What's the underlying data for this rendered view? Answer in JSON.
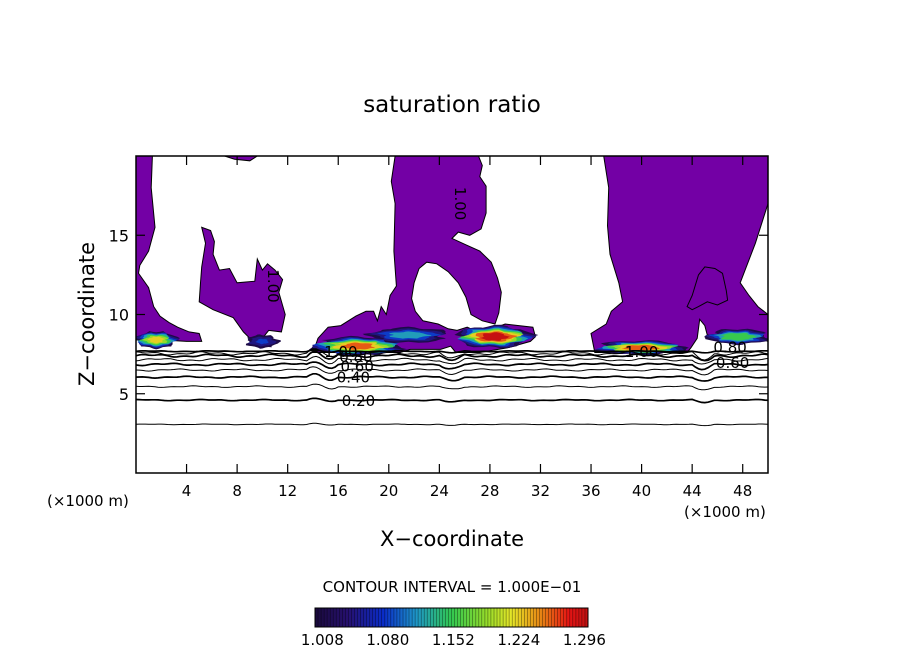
{
  "chart_data": {
    "type": "heatmap",
    "title": "saturation ratio",
    "xlabel": "X−coordinate",
    "ylabel": "Z−coordinate",
    "x_unit_left": "(×1000 m)",
    "x_unit_right": "(×1000 m)",
    "xlim": [
      0,
      50
    ],
    "ylim": [
      0,
      20
    ],
    "x_ticks": [
      4,
      8,
      12,
      16,
      20,
      24,
      28,
      32,
      36,
      40,
      44,
      48
    ],
    "y_ticks": [
      5,
      10,
      15
    ],
    "contour_interval_text": "CONTOUR INTERVAL = 1.000E−01",
    "colorbar": {
      "min": 1.0,
      "max": 1.3,
      "tick_labels": [
        "1.008",
        "1.080",
        "1.152",
        "1.224",
        "1.296"
      ],
      "tick_values": [
        1.008,
        1.08,
        1.152,
        1.224,
        1.296
      ]
    },
    "contour_labels": [
      {
        "text": "0.20",
        "x": 17.6,
        "y": 4.5
      },
      {
        "text": "0.40",
        "x": 17.2,
        "y": 6.0
      },
      {
        "text": "0.60",
        "x": 17.5,
        "y": 6.7
      },
      {
        "text": "0.80",
        "x": 17.4,
        "y": 7.3
      },
      {
        "text": "1.00",
        "x": 16.2,
        "y": 7.6
      },
      {
        "text": "1.00",
        "x": 40.0,
        "y": 7.6
      },
      {
        "text": "0.80",
        "x": 47.0,
        "y": 7.9
      },
      {
        "text": "0.60",
        "x": 47.2,
        "y": 6.9
      },
      {
        "text": "1.00",
        "x": 25.6,
        "y": 17.0
      },
      {
        "text": "1.00",
        "x": 10.8,
        "y": 11.8
      }
    ],
    "contour_levels_below": [
      0.2,
      0.4,
      0.6,
      0.8,
      1.0
    ],
    "supersaturated_regions": [
      [
        [
          0,
          20
        ],
        [
          1.3,
          20
        ],
        [
          1.2,
          18
        ],
        [
          1.5,
          15.5
        ],
        [
          1.0,
          14.0
        ],
        [
          0.3,
          13.1
        ],
        [
          0.2,
          12.6
        ],
        [
          1.0,
          11.7
        ],
        [
          1.4,
          10.5
        ],
        [
          1.9,
          9.9
        ],
        [
          2.6,
          9.5
        ],
        [
          3.3,
          9.2
        ],
        [
          4.2,
          8.9
        ],
        [
          5.0,
          8.8
        ],
        [
          5.2,
          8.3
        ],
        [
          4.0,
          8.3
        ],
        [
          2.0,
          8.4
        ],
        [
          0,
          8.4
        ]
      ],
      [
        [
          9.6,
          8.1
        ],
        [
          10.5,
          9.0
        ],
        [
          11.5,
          8.9
        ],
        [
          11.8,
          10.0
        ],
        [
          11.3,
          11.4
        ],
        [
          11.6,
          12.2
        ],
        [
          11.0,
          12.8
        ],
        [
          10.4,
          13.2
        ],
        [
          10.0,
          12.8
        ],
        [
          9.6,
          13.5
        ],
        [
          9.4,
          12.1
        ],
        [
          8.0,
          12.0
        ],
        [
          7.4,
          12.9
        ],
        [
          6.6,
          12.8
        ],
        [
          6.1,
          13.8
        ],
        [
          6.2,
          14.6
        ],
        [
          5.9,
          15.3
        ],
        [
          5.2,
          15.5
        ],
        [
          5.5,
          14.5
        ],
        [
          5.2,
          13.0
        ],
        [
          5.1,
          12.0
        ],
        [
          5.0,
          10.8
        ],
        [
          6.1,
          10.3
        ],
        [
          7.7,
          9.8
        ],
        [
          8.5,
          8.9
        ],
        [
          9.0,
          8.5
        ]
      ],
      [
        [
          7.0,
          20
        ],
        [
          9.6,
          20
        ],
        [
          9.0,
          19.7
        ],
        [
          7.8,
          19.8
        ]
      ],
      [
        [
          14.0,
          7.6
        ],
        [
          14.4,
          8.5
        ],
        [
          15.2,
          9.2
        ],
        [
          16.2,
          9.3
        ],
        [
          17.4,
          9.9
        ],
        [
          18.2,
          10.2
        ],
        [
          18.8,
          10.2
        ],
        [
          19.1,
          9.6
        ],
        [
          19.4,
          10.5
        ],
        [
          19.8,
          10.0
        ],
        [
          20.1,
          11.2
        ],
        [
          20.6,
          11.8
        ],
        [
          20.4,
          14.0
        ],
        [
          20.5,
          17.0
        ],
        [
          20.2,
          18.4
        ],
        [
          20.5,
          20
        ],
        [
          27.1,
          20
        ],
        [
          27.4,
          19.4
        ],
        [
          27.2,
          18.7
        ],
        [
          27.7,
          18.1
        ],
        [
          27.7,
          16.4
        ],
        [
          27.3,
          15.4
        ],
        [
          26.4,
          15.0
        ],
        [
          25.5,
          15.2
        ],
        [
          25.0,
          14.8
        ],
        [
          26.1,
          14.4
        ],
        [
          27.2,
          14.0
        ],
        [
          28.1,
          13.3
        ],
        [
          28.6,
          12.3
        ],
        [
          28.9,
          11.4
        ],
        [
          28.7,
          10.1
        ],
        [
          28.4,
          9.4
        ],
        [
          27.4,
          9.6
        ],
        [
          26.5,
          10.0
        ],
        [
          26.1,
          11.1
        ],
        [
          25.5,
          12.0
        ],
        [
          24.7,
          12.7
        ],
        [
          23.8,
          13.2
        ],
        [
          23.0,
          13.3
        ],
        [
          22.4,
          12.9
        ],
        [
          22.0,
          12.0
        ],
        [
          21.8,
          11.0
        ],
        [
          22.1,
          10.2
        ],
        [
          22.7,
          9.6
        ],
        [
          23.9,
          9.4
        ],
        [
          24.7,
          9.1
        ],
        [
          25.4,
          9.0
        ],
        [
          26.2,
          9.2
        ],
        [
          27.3,
          8.8
        ],
        [
          29.2,
          9.4
        ],
        [
          31.4,
          9.2
        ],
        [
          31.6,
          8.6
        ],
        [
          31.2,
          8.3
        ],
        [
          29.4,
          7.9
        ],
        [
          27.2,
          7.6
        ],
        [
          25.3,
          7.6
        ],
        [
          24.9,
          8.0
        ],
        [
          24.1,
          7.8
        ],
        [
          21.7,
          7.8
        ],
        [
          20.9,
          7.6
        ],
        [
          20.2,
          7.6
        ],
        [
          18.7,
          7.6
        ]
      ],
      [
        [
          36.3,
          7.6
        ],
        [
          36.0,
          8.8
        ],
        [
          37.2,
          9.4
        ],
        [
          37.6,
          10.2
        ],
        [
          38.5,
          10.8
        ],
        [
          38.2,
          12.0
        ],
        [
          37.5,
          13.8
        ],
        [
          37.3,
          15.6
        ],
        [
          37.4,
          18.0
        ],
        [
          37.0,
          20
        ],
        [
          50,
          20
        ],
        [
          50,
          17.0
        ],
        [
          49.0,
          14.5
        ],
        [
          47.8,
          12.0
        ],
        [
          48.5,
          11.2
        ],
        [
          49.2,
          10.5
        ],
        [
          50,
          10.0
        ],
        [
          50,
          8.3
        ],
        [
          48.6,
          8.8
        ],
        [
          47.9,
          8.8
        ],
        [
          45.2,
          8.7
        ],
        [
          45.0,
          9.3
        ],
        [
          44.6,
          9.7
        ],
        [
          44.4,
          8.5
        ],
        [
          43.9,
          7.9
        ],
        [
          43.6,
          7.6
        ],
        [
          40.0,
          7.6
        ],
        [
          38.0,
          7.6
        ]
      ],
      [
        [
          43.6,
          10.5
        ],
        [
          44.0,
          11.2
        ],
        [
          44.5,
          12.5
        ],
        [
          45.0,
          13.0
        ],
        [
          45.8,
          12.9
        ],
        [
          46.4,
          12.6
        ],
        [
          46.7,
          11.5
        ],
        [
          46.8,
          10.9
        ],
        [
          46.0,
          10.6
        ],
        [
          45.2,
          10.8
        ],
        [
          44.5,
          10.5
        ],
        [
          44.0,
          10.3
        ]
      ]
    ],
    "ice_cloud_bands": [
      {
        "x0": 0.0,
        "x1": 3.2,
        "peak": 1.23,
        "zc": 8.4,
        "half": 0.55
      },
      {
        "x0": 8.7,
        "x1": 11.3,
        "peak": 1.08,
        "zc": 8.3,
        "half": 0.45
      },
      {
        "x0": 14.1,
        "x1": 21.0,
        "peak": 1.26,
        "zc": 8.0,
        "half": 0.6
      },
      {
        "x0": 18.5,
        "x1": 24.6,
        "peak": 1.13,
        "zc": 8.7,
        "half": 0.5
      },
      {
        "x0": 25.5,
        "x1": 31.2,
        "peak": 1.3,
        "zc": 8.6,
        "half": 0.7
      },
      {
        "x0": 36.6,
        "x1": 43.3,
        "peak": 1.27,
        "zc": 7.9,
        "half": 0.45
      },
      {
        "x0": 45.2,
        "x1": 50.0,
        "peak": 1.18,
        "zc": 8.6,
        "half": 0.5
      }
    ]
  }
}
